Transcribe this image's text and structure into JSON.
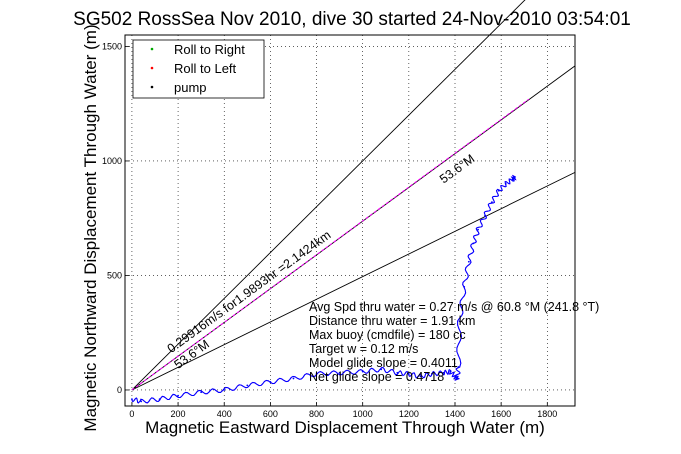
{
  "chart_data": {
    "type": "line",
    "title": "SG502 RossSea Nov 2010, dive 30 started 24-Nov-2010 03:54:01",
    "xlabel": "Magnetic Eastward Displacement Through Water (m)",
    "ylabel": "Magnetic Northward Displacement Through Water (m)",
    "xlim": [
      -30,
      1920
    ],
    "ylim": [
      -70,
      1550
    ],
    "xticks": [
      0,
      200,
      400,
      600,
      800,
      1000,
      1200,
      1400,
      1600,
      1800
    ],
    "yticks": [
      0,
      500,
      1000,
      1500
    ],
    "grid": true,
    "legend_position": "top-left",
    "legend": [
      {
        "label": "Roll to Right",
        "color": "#00aa00",
        "marker": "dot"
      },
      {
        "label": "Roll to Left",
        "color": "#ff0000",
        "marker": "dot"
      },
      {
        "label": "pump",
        "color": "#000000",
        "marker": "dot"
      }
    ],
    "reference_lines": [
      {
        "angle_deg_from_east": 45,
        "color": "#000000",
        "to": [
          1920,
          1920
        ]
      },
      {
        "angle_deg_from_east": 36.4,
        "color": "#000000",
        "to": [
          1920,
          1415
        ]
      },
      {
        "angle_deg_from_east": 26.3,
        "color": "#000000",
        "to": [
          1920,
          950
        ]
      }
    ],
    "magenta_line": {
      "color": "#ff00ff",
      "from": [
        0,
        0
      ],
      "to": [
        1720,
        1270
      ]
    },
    "series": [
      {
        "color": "#0000ff",
        "x": [
          0,
          40,
          120,
          200,
          300,
          400,
          500,
          600,
          700,
          800,
          900,
          1000,
          1080,
          1150,
          1200,
          1250,
          1300,
          1350,
          1380,
          1400,
          1410,
          1415,
          1420,
          1440,
          1460,
          1480,
          1500,
          1530,
          1560,
          1590,
          1620,
          1650,
          1660
        ],
        "y": [
          -40,
          -50,
          -40,
          -25,
          -10,
          0,
          20,
          35,
          50,
          70,
          75,
          80,
          90,
          75,
          70,
          60,
          70,
          75,
          80,
          60,
          50,
          100,
          300,
          450,
          560,
          640,
          700,
          760,
          820,
          870,
          900,
          920,
          930
        ]
      }
    ],
    "annotations": [
      {
        "text": "0.29916m/s for1.9893hr =2.1424km",
        "x": 170,
        "y": 160,
        "rotation_deg": -36
      },
      {
        "text": "53.6°M",
        "x": 200,
        "y": 90,
        "rotation_deg": -36
      },
      {
        "text": "53.6°M",
        "x": 1350,
        "y": 900,
        "rotation_deg": -36
      }
    ],
    "stats": [
      "Avg Spd thru water = 0.27 m/s @  60.8   °M (241.8 °T)",
      "Distance thru water = 1.91 km",
      "Max buoy (cmdfile) = 180 cc",
      "Target w = 0.12 m/s",
      "Model glide slope = 0.4011",
      "Net glide slope = 0.4718"
    ]
  }
}
